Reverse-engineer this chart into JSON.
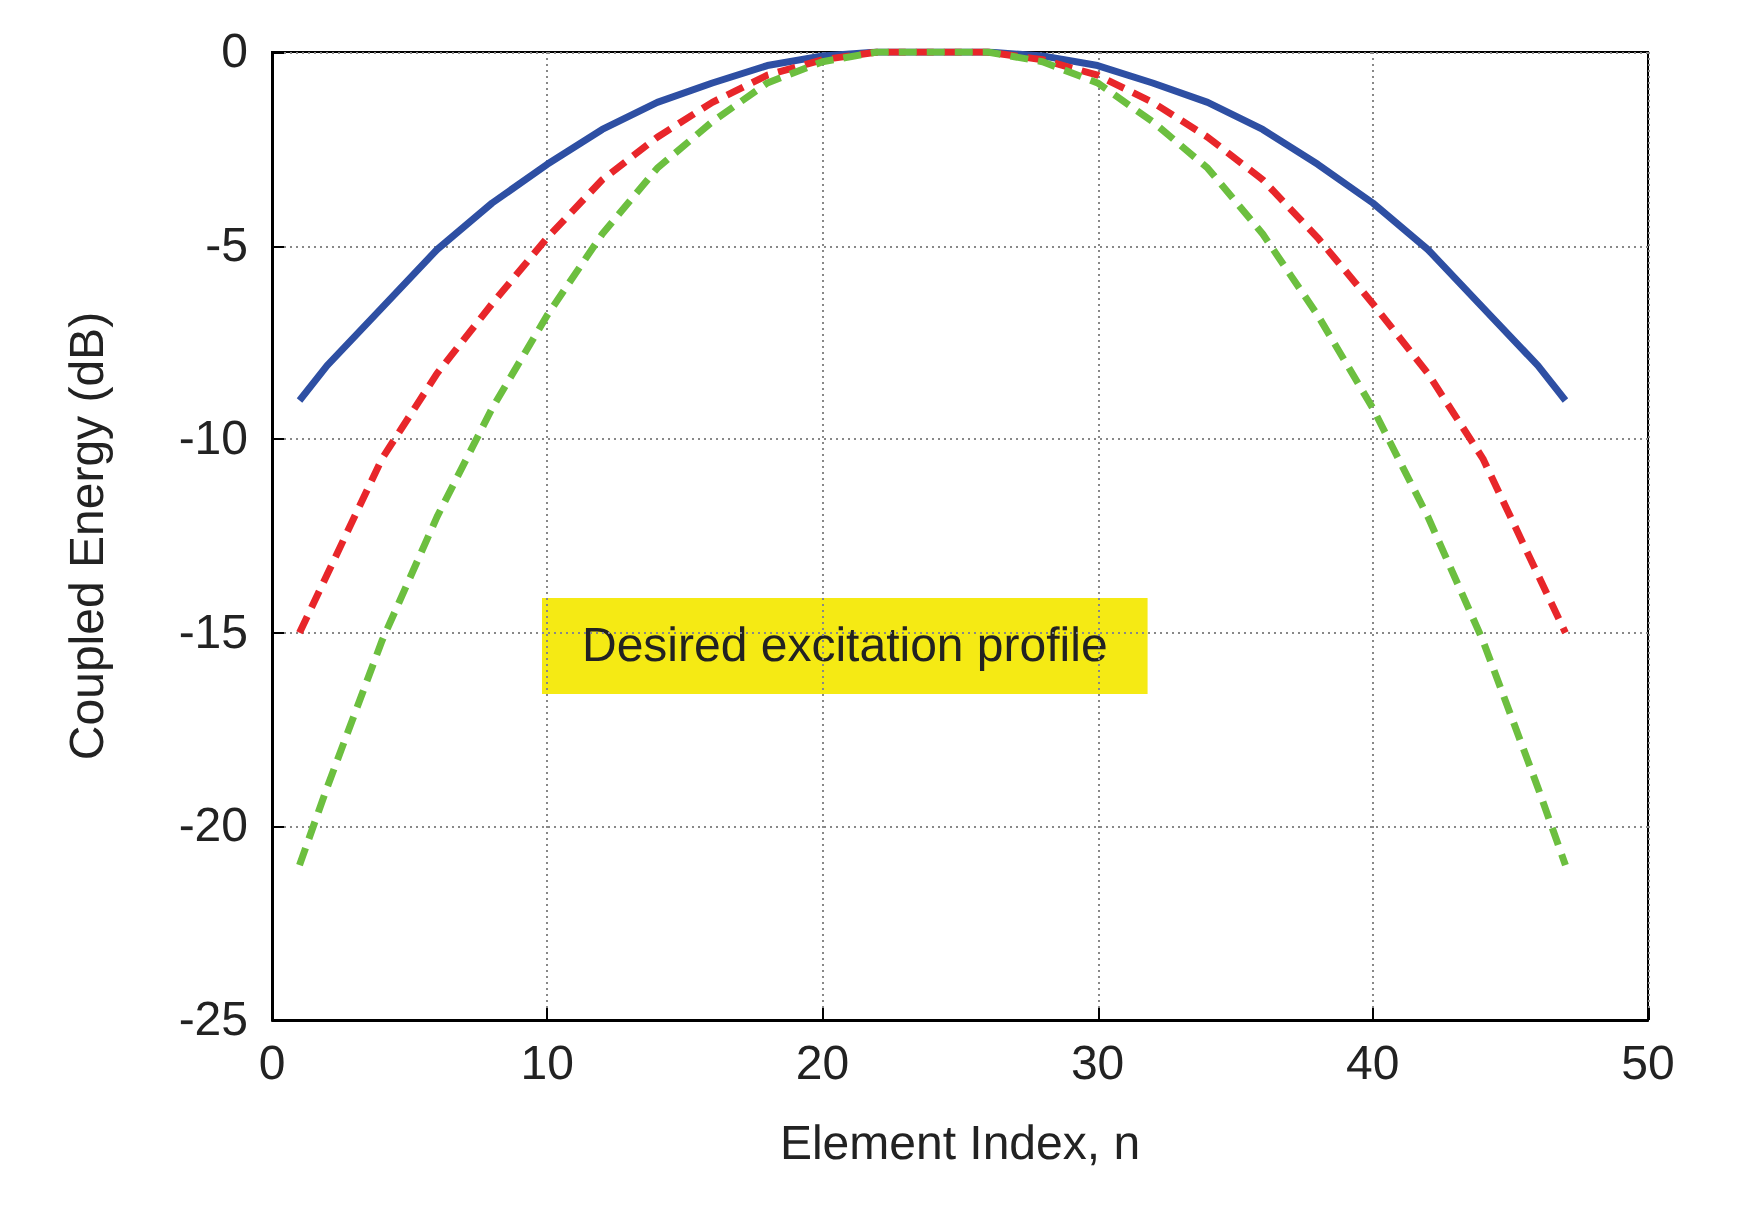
{
  "chart_data": {
    "type": "line",
    "xlabel": "Element Index, n",
    "ylabel": "Coupled Energy (dB)",
    "x": [
      1,
      2,
      4,
      6,
      8,
      10,
      12,
      14,
      16,
      18,
      20,
      22,
      24,
      26,
      28,
      30,
      32,
      34,
      36,
      38,
      40,
      42,
      44,
      46,
      47
    ],
    "series": [
      {
        "color": "#2e4fa3",
        "line_style": "solid",
        "values": [
          -9,
          -8.1,
          -6.6,
          -5.1,
          -3.9,
          -2.9,
          -2.0,
          -1.3,
          -0.8,
          -0.35,
          -0.1,
          0,
          0,
          0,
          -0.1,
          -0.35,
          -0.8,
          -1.3,
          -2.0,
          -2.9,
          -3.9,
          -5.1,
          -6.6,
          -8.1,
          -9
        ]
      },
      {
        "color": "#e8262a",
        "line_style": "dashed",
        "values": [
          -15,
          -13.5,
          -10.5,
          -8.3,
          -6.5,
          -4.8,
          -3.3,
          -2.2,
          -1.3,
          -0.6,
          -0.2,
          0,
          0,
          0,
          -0.2,
          -0.6,
          -1.3,
          -2.2,
          -3.3,
          -4.8,
          -6.5,
          -8.3,
          -10.5,
          -13.5,
          -15
        ]
      },
      {
        "color": "#6cbf3f",
        "line_style": "dashed",
        "values": [
          -21,
          -19,
          -15.2,
          -12,
          -9.2,
          -6.8,
          -4.7,
          -3.0,
          -1.8,
          -0.8,
          -0.25,
          0,
          0,
          0,
          -0.25,
          -0.8,
          -1.8,
          -3.0,
          -4.7,
          -6.8,
          -9.2,
          -12,
          -15.2,
          -19,
          -21
        ]
      }
    ],
    "xlim": [
      0,
      50
    ],
    "xticks": [
      0,
      10,
      20,
      30,
      40,
      50
    ],
    "ylim": [
      -25,
      0
    ],
    "yticks": [
      -25,
      -20,
      -15,
      -10,
      -5,
      0
    ],
    "grid": true,
    "marker": "none",
    "annotations": [
      "Desired excitation profile"
    ]
  }
}
